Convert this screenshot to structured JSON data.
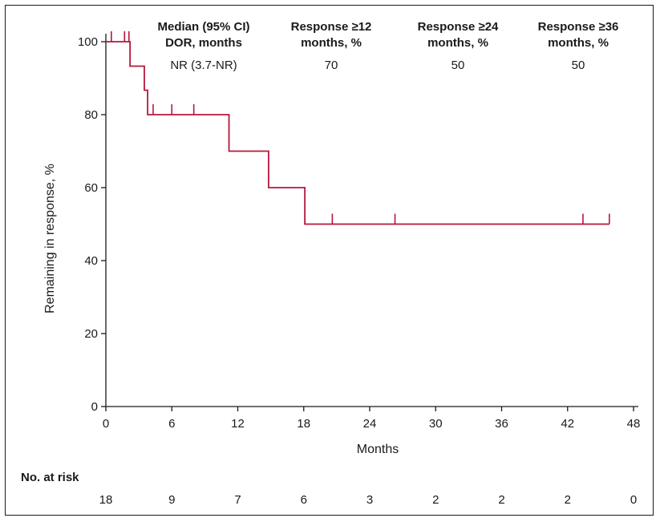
{
  "chart_data": {
    "type": "line",
    "subtype": "kaplan-meier",
    "xlabel": "Months",
    "ylabel": "Remaining in response, %",
    "xlim": [
      0,
      48
    ],
    "ylim": [
      0,
      100
    ],
    "x_ticks": [
      0,
      6,
      12,
      18,
      24,
      30,
      36,
      42,
      48
    ],
    "y_ticks": [
      0,
      20,
      40,
      60,
      80,
      100
    ],
    "grid": false,
    "line_color": "#b5173b",
    "series": [
      {
        "steps": [
          {
            "x": 0,
            "y": 100
          },
          {
            "x": 2.2,
            "y": 93.3
          },
          {
            "x": 3.5,
            "y": 86.7
          },
          {
            "x": 3.8,
            "y": 80
          },
          {
            "x": 11.2,
            "y": 70
          },
          {
            "x": 14.8,
            "y": 60
          },
          {
            "x": 18.1,
            "y": 50
          },
          {
            "x": 45.8,
            "y": 50
          }
        ],
        "censored": [
          {
            "x": 0.5,
            "y": 100
          },
          {
            "x": 1.7,
            "y": 100
          },
          {
            "x": 2.1,
            "y": 100
          },
          {
            "x": 4.3,
            "y": 80
          },
          {
            "x": 6.0,
            "y": 80
          },
          {
            "x": 8.0,
            "y": 80
          },
          {
            "x": 20.6,
            "y": 50
          },
          {
            "x": 26.3,
            "y": 50
          },
          {
            "x": 43.4,
            "y": 50
          },
          {
            "x": 45.8,
            "y": 50
          }
        ]
      }
    ],
    "summary_table": {
      "columns": [
        {
          "header": [
            "Median (95% CI)",
            "DOR, months"
          ],
          "value": "NR (3.7-NR)"
        },
        {
          "header": [
            "Response ≥12",
            "months, %"
          ],
          "value": "70"
        },
        {
          "header": [
            "Response ≥24",
            "months, %"
          ],
          "value": "50"
        },
        {
          "header": [
            "Response ≥36",
            "months, %"
          ],
          "value": "50"
        }
      ]
    },
    "at_risk": {
      "title": "No. at risk",
      "x": [
        0,
        6,
        12,
        18,
        24,
        30,
        36,
        42,
        48
      ],
      "values": [
        "18",
        "9",
        "7",
        "6",
        "3",
        "2",
        "2",
        "2",
        "0"
      ]
    }
  }
}
